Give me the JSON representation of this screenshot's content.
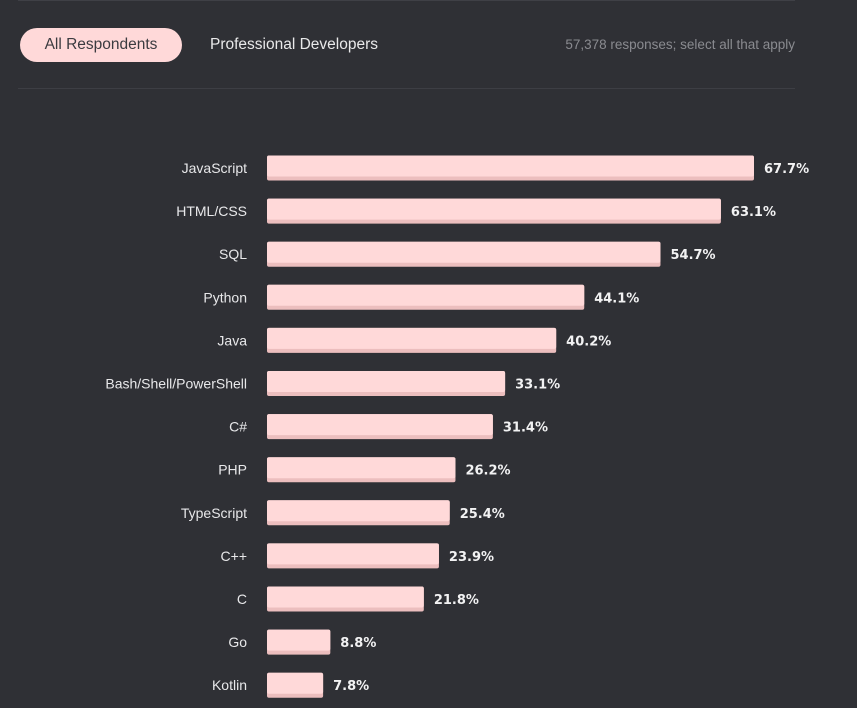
{
  "tabs": {
    "all_respondents": "All Respondents",
    "professional_developers": "Professional Developers"
  },
  "responses_note": "57,378 responses; select all that apply",
  "colors": {
    "bar_fill": "#ffd9d9",
    "bar_shadow": "#ecbebe",
    "background": "#2f3035"
  },
  "chart_data": {
    "type": "bar",
    "orientation": "horizontal",
    "title": "",
    "xlabel": "",
    "ylabel": "",
    "xlim": [
      0,
      67.7
    ],
    "grid": false,
    "value_suffix": "%",
    "categories": [
      "JavaScript",
      "HTML/CSS",
      "SQL",
      "Python",
      "Java",
      "Bash/Shell/PowerShell",
      "C#",
      "PHP",
      "TypeScript",
      "C++",
      "C",
      "Go",
      "Kotlin"
    ],
    "values": [
      67.7,
      63.1,
      54.7,
      44.1,
      40.2,
      33.1,
      31.4,
      26.2,
      25.4,
      23.9,
      21.8,
      8.8,
      7.8
    ],
    "value_labels": [
      "67.7%",
      "63.1%",
      "54.7%",
      "44.1%",
      "40.2%",
      "33.1%",
      "31.4%",
      "26.2%",
      "25.4%",
      "23.9%",
      "21.8%",
      "8.8%",
      "7.8%"
    ]
  }
}
